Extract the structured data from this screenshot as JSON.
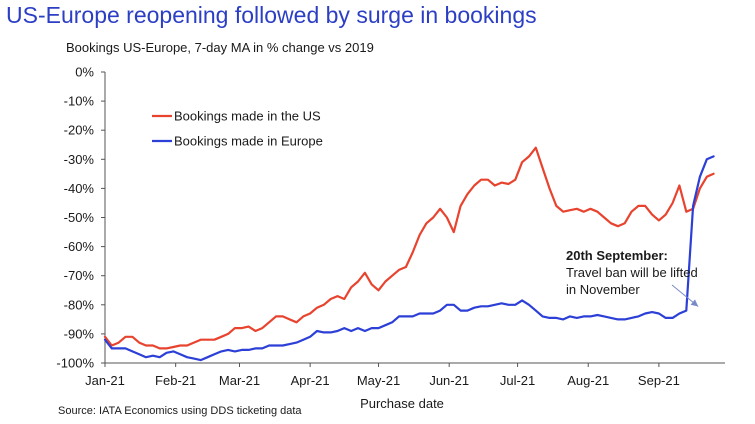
{
  "chart_data": {
    "type": "line",
    "title": "US-Europe reopening followed by surge in bookings",
    "subtitle": "Bookings US-Europe, 7-day MA in % change vs 2019",
    "xlabel": "Purchase date",
    "ylabel": "",
    "source": "Source: IATA Economics using DDS ticketing data",
    "ylim": [
      -100,
      0
    ],
    "y_ticks": [
      0,
      -10,
      -20,
      -30,
      -40,
      -50,
      -60,
      -70,
      -80,
      -90,
      -100
    ],
    "y_tick_labels": [
      "0%",
      "-10%",
      "-20%",
      "-30%",
      "-40%",
      "-50%",
      "-60%",
      "-70%",
      "-80%",
      "-90%",
      "-100%"
    ],
    "x_range": [
      "2021-01-01",
      "2021-09-30"
    ],
    "x_ticks": [
      "2021-01-01",
      "2021-02-01",
      "2021-03-01",
      "2021-04-01",
      "2021-05-01",
      "2021-06-01",
      "2021-07-01",
      "2021-08-01",
      "2021-09-01"
    ],
    "x_tick_labels": [
      "Jan-21",
      "Feb-21",
      "Mar-21",
      "Apr-21",
      "May-21",
      "Jun-21",
      "Jul-21",
      "Aug-21",
      "Sep-21"
    ],
    "legend_position": "upper-left",
    "grid": false,
    "series": [
      {
        "name": "Bookings made in the US",
        "color": "#e8432e",
        "x": [
          "2021-01-01",
          "2021-01-04",
          "2021-01-07",
          "2021-01-10",
          "2021-01-13",
          "2021-01-16",
          "2021-01-19",
          "2021-01-22",
          "2021-01-25",
          "2021-01-28",
          "2021-01-31",
          "2021-02-03",
          "2021-02-06",
          "2021-02-09",
          "2021-02-12",
          "2021-02-15",
          "2021-02-18",
          "2021-02-21",
          "2021-02-24",
          "2021-02-27",
          "2021-03-02",
          "2021-03-05",
          "2021-03-08",
          "2021-03-11",
          "2021-03-14",
          "2021-03-17",
          "2021-03-20",
          "2021-03-23",
          "2021-03-26",
          "2021-03-29",
          "2021-04-01",
          "2021-04-04",
          "2021-04-07",
          "2021-04-10",
          "2021-04-13",
          "2021-04-16",
          "2021-04-19",
          "2021-04-22",
          "2021-04-25",
          "2021-04-28",
          "2021-05-01",
          "2021-05-04",
          "2021-05-07",
          "2021-05-10",
          "2021-05-13",
          "2021-05-16",
          "2021-05-19",
          "2021-05-22",
          "2021-05-25",
          "2021-05-28",
          "2021-05-31",
          "2021-06-03",
          "2021-06-06",
          "2021-06-09",
          "2021-06-12",
          "2021-06-15",
          "2021-06-18",
          "2021-06-21",
          "2021-06-24",
          "2021-06-27",
          "2021-06-30",
          "2021-07-03",
          "2021-07-06",
          "2021-07-09",
          "2021-07-12",
          "2021-07-15",
          "2021-07-18",
          "2021-07-21",
          "2021-07-24",
          "2021-07-27",
          "2021-07-30",
          "2021-08-02",
          "2021-08-05",
          "2021-08-08",
          "2021-08-11",
          "2021-08-14",
          "2021-08-17",
          "2021-08-20",
          "2021-08-23",
          "2021-08-26",
          "2021-08-29",
          "2021-09-01",
          "2021-09-04",
          "2021-09-07",
          "2021-09-10",
          "2021-09-13",
          "2021-09-16",
          "2021-09-19",
          "2021-09-22",
          "2021-09-25"
        ],
        "y": [
          -91,
          -94,
          -93,
          -91,
          -91,
          -93,
          -94,
          -94,
          -95,
          -95,
          -94.5,
          -94,
          -94,
          -93,
          -92,
          -92,
          -92,
          -91,
          -90,
          -88,
          -88,
          -87.5,
          -89,
          -88,
          -86,
          -84,
          -84,
          -85,
          -86,
          -84,
          -83,
          -81,
          -80,
          -78,
          -77,
          -78,
          -74,
          -72,
          -69,
          -73,
          -75,
          -72,
          -70,
          -68,
          -67,
          -62,
          -56,
          -52,
          -50,
          -47,
          -50,
          -55,
          -46,
          -42,
          -39,
          -37,
          -37,
          -39,
          -38,
          -38.5,
          -37,
          -31,
          -29,
          -26,
          -33,
          -40,
          -46,
          -48,
          -47.5,
          -47,
          -48,
          -47,
          -48,
          -50,
          -52,
          -53,
          -52,
          -48,
          -46,
          -46,
          -49,
          -51,
          -49,
          -45,
          -39,
          -48,
          -47,
          -40,
          -36,
          -35
        ]
      },
      {
        "name": "Bookings made in Europe",
        "color": "#2c3fd6",
        "x": [
          "2021-01-01",
          "2021-01-04",
          "2021-01-07",
          "2021-01-10",
          "2021-01-13",
          "2021-01-16",
          "2021-01-19",
          "2021-01-22",
          "2021-01-25",
          "2021-01-28",
          "2021-01-31",
          "2021-02-03",
          "2021-02-06",
          "2021-02-09",
          "2021-02-12",
          "2021-02-15",
          "2021-02-18",
          "2021-02-21",
          "2021-02-24",
          "2021-02-27",
          "2021-03-02",
          "2021-03-05",
          "2021-03-08",
          "2021-03-11",
          "2021-03-14",
          "2021-03-17",
          "2021-03-20",
          "2021-03-23",
          "2021-03-26",
          "2021-03-29",
          "2021-04-01",
          "2021-04-04",
          "2021-04-07",
          "2021-04-10",
          "2021-04-13",
          "2021-04-16",
          "2021-04-19",
          "2021-04-22",
          "2021-04-25",
          "2021-04-28",
          "2021-05-01",
          "2021-05-04",
          "2021-05-07",
          "2021-05-10",
          "2021-05-13",
          "2021-05-16",
          "2021-05-19",
          "2021-05-22",
          "2021-05-25",
          "2021-05-28",
          "2021-05-31",
          "2021-06-03",
          "2021-06-06",
          "2021-06-09",
          "2021-06-12",
          "2021-06-15",
          "2021-06-18",
          "2021-06-21",
          "2021-06-24",
          "2021-06-27",
          "2021-06-30",
          "2021-07-03",
          "2021-07-06",
          "2021-07-09",
          "2021-07-12",
          "2021-07-15",
          "2021-07-18",
          "2021-07-21",
          "2021-07-24",
          "2021-07-27",
          "2021-07-30",
          "2021-08-02",
          "2021-08-05",
          "2021-08-08",
          "2021-08-11",
          "2021-08-14",
          "2021-08-17",
          "2021-08-20",
          "2021-08-23",
          "2021-08-26",
          "2021-08-29",
          "2021-09-01",
          "2021-09-04",
          "2021-09-07",
          "2021-09-10",
          "2021-09-13",
          "2021-09-16",
          "2021-09-19",
          "2021-09-22",
          "2021-09-25"
        ],
        "y": [
          -92,
          -95,
          -95,
          -95,
          -96,
          -97,
          -98,
          -97.5,
          -98,
          -96.5,
          -96,
          -97,
          -98,
          -98.5,
          -99,
          -98,
          -97,
          -96,
          -95.5,
          -96,
          -95.5,
          -95.5,
          -95,
          -95,
          -94,
          -94,
          -94,
          -93.5,
          -93,
          -92,
          -91,
          -89,
          -89.5,
          -89.5,
          -89,
          -88,
          -89,
          -88,
          -89,
          -88,
          -88,
          -87,
          -86,
          -84,
          -84,
          -84,
          -83,
          -83,
          -83,
          -82,
          -80,
          -80,
          -82,
          -82,
          -81,
          -80.5,
          -80.5,
          -80,
          -79.5,
          -80,
          -80,
          -78.5,
          -80,
          -82,
          -84,
          -84.5,
          -84.5,
          -85,
          -84,
          -84.5,
          -84,
          -84,
          -83.5,
          -84,
          -84.5,
          -85,
          -85,
          -84.5,
          -84,
          -83,
          -82.5,
          -83,
          -84.5,
          -84.5,
          -83,
          -82,
          -46,
          -36,
          -30,
          -29
        ]
      }
    ],
    "annotation": {
      "title": "20th September:",
      "lines": [
        "Travel ban will be lifted",
        "in November"
      ],
      "target_x": "2021-09-20",
      "target_y": -83
    }
  },
  "colors": {
    "title": "#2c3fc4",
    "us": "#e8432e",
    "europe": "#2c3fd6",
    "axis": "#555555",
    "arrow": "#7a8ac8"
  }
}
